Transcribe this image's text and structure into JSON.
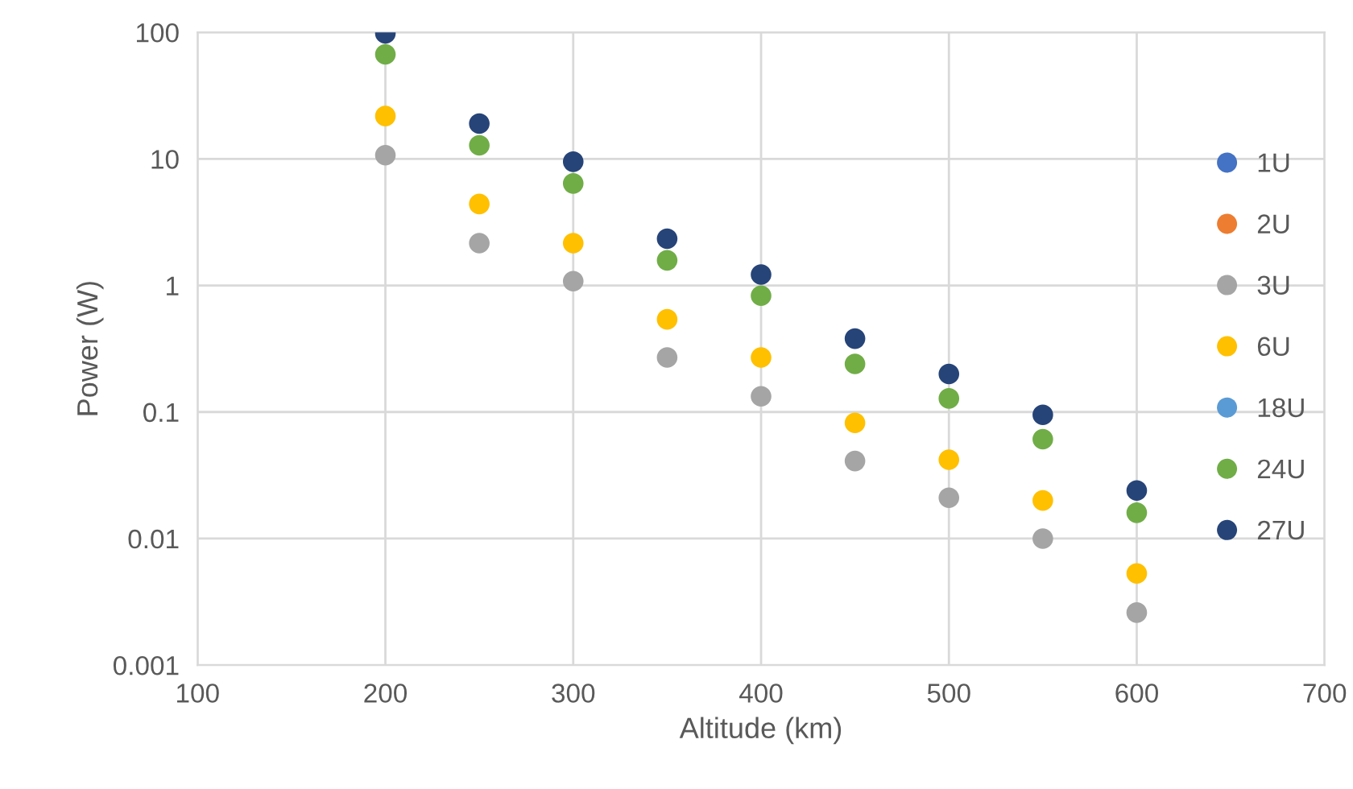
{
  "chart_data": {
    "type": "scatter",
    "xlabel": "Altitude (km)",
    "ylabel": "Power (W)",
    "x": [
      200,
      250,
      300,
      350,
      400,
      450,
      500,
      550,
      600
    ],
    "series": [
      {
        "name": "1U",
        "color": "#4472c4",
        "values": [
          null,
          null,
          null,
          null,
          null,
          null,
          null,
          null,
          null
        ]
      },
      {
        "name": "2U",
        "color": "#ed7d31",
        "values": [
          null,
          null,
          null,
          null,
          null,
          null,
          null,
          null,
          null
        ]
      },
      {
        "name": "3U",
        "color": "#a5a5a5",
        "values": [
          10.7,
          2.16,
          1.08,
          0.27,
          0.133,
          0.041,
          0.021,
          0.01,
          0.0026
        ]
      },
      {
        "name": "6U",
        "color": "#ffc000",
        "values": [
          21.8,
          4.4,
          2.16,
          0.54,
          0.27,
          0.082,
          0.042,
          0.02,
          0.0053
        ]
      },
      {
        "name": "18U",
        "color": "#5b9bd5",
        "values": [
          null,
          null,
          null,
          null,
          null,
          null,
          null,
          null,
          null
        ]
      },
      {
        "name": "24U",
        "color": "#70ad47",
        "values": [
          67,
          12.8,
          6.4,
          1.58,
          0.83,
          0.24,
          0.128,
          0.061,
          0.016
        ]
      },
      {
        "name": "27U",
        "color": "#264478",
        "values": [
          98,
          19,
          9.5,
          2.34,
          1.22,
          0.38,
          0.2,
          0.095,
          0.024
        ]
      }
    ],
    "log": "y",
    "xlim": [
      100,
      700
    ],
    "xticks": [
      100,
      200,
      300,
      400,
      500,
      600,
      700
    ],
    "ylim": [
      0.001,
      100
    ],
    "yticks": [
      0.001,
      0.01,
      0.1,
      1,
      10,
      100
    ],
    "grid": true,
    "legend": "right",
    "marker": "circle"
  }
}
